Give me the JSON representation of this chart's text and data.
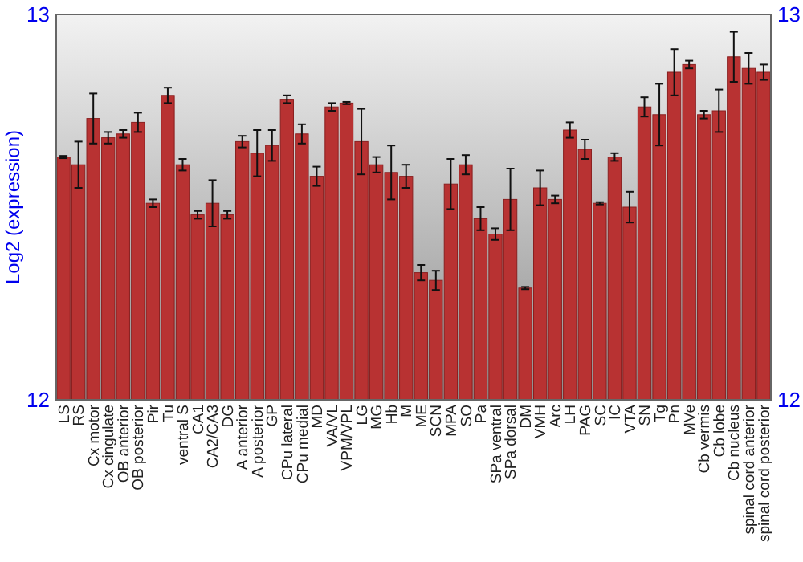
{
  "chart_data": {
    "type": "bar",
    "ylabel": "Log2 (expression)",
    "categories": [
      "LS",
      "RS",
      "Cx motor",
      "Cx cingulate",
      "OB anterior",
      "OB posterior",
      "Pir",
      "Tu",
      "ventral S",
      "CA1",
      "CA2/CA3",
      "DG",
      "A anterior",
      "A posterior",
      "GP",
      "CPu lateral",
      "CPu medial",
      "MD",
      "VA/VL",
      "VPM/VPL",
      "LG",
      "MG",
      "Hb",
      "M",
      "ME",
      "SCN",
      "MPA",
      "SO",
      "Pa",
      "SPa ventral",
      "SPa dorsal",
      "DM",
      "VMH",
      "Arc",
      "LH",
      "PAG",
      "SC",
      "IC",
      "VTA",
      "SN",
      "Tg",
      "Pn",
      "MVe",
      "Cb vermis",
      "Cb lobe",
      "Cb nucleus",
      "spinal cord anterior",
      "spinal cord posterior"
    ],
    "values": [
      12.63,
      12.61,
      12.73,
      12.68,
      12.69,
      12.72,
      12.51,
      12.79,
      12.61,
      12.48,
      12.51,
      12.48,
      12.67,
      12.64,
      12.66,
      12.78,
      12.69,
      12.58,
      12.76,
      12.77,
      12.67,
      12.61,
      12.59,
      12.58,
      12.33,
      12.31,
      12.56,
      12.61,
      12.47,
      12.43,
      12.52,
      12.29,
      12.55,
      12.52,
      12.7,
      12.65,
      12.51,
      12.63,
      12.5,
      12.76,
      12.74,
      12.85,
      12.87,
      12.74,
      12.75,
      12.89,
      12.86,
      12.85
    ],
    "errors": [
      0.003,
      0.06,
      0.065,
      0.015,
      0.01,
      0.025,
      0.01,
      0.02,
      0.015,
      0.01,
      0.06,
      0.01,
      0.015,
      0.06,
      0.04,
      0.01,
      0.025,
      0.025,
      0.01,
      0.003,
      0.085,
      0.02,
      0.07,
      0.03,
      0.02,
      0.025,
      0.065,
      0.025,
      0.03,
      0.015,
      0.08,
      0.003,
      0.045,
      0.01,
      0.02,
      0.025,
      0.003,
      0.01,
      0.04,
      0.025,
      0.08,
      0.06,
      0.01,
      0.01,
      0.055,
      0.065,
      0.04,
      0.02
    ],
    "color": "#b83232",
    "ylim": [
      12,
      13
    ],
    "yticks": [
      12,
      13
    ],
    "y2lim": [
      12,
      13
    ],
    "y2ticks": [
      12,
      13
    ]
  }
}
